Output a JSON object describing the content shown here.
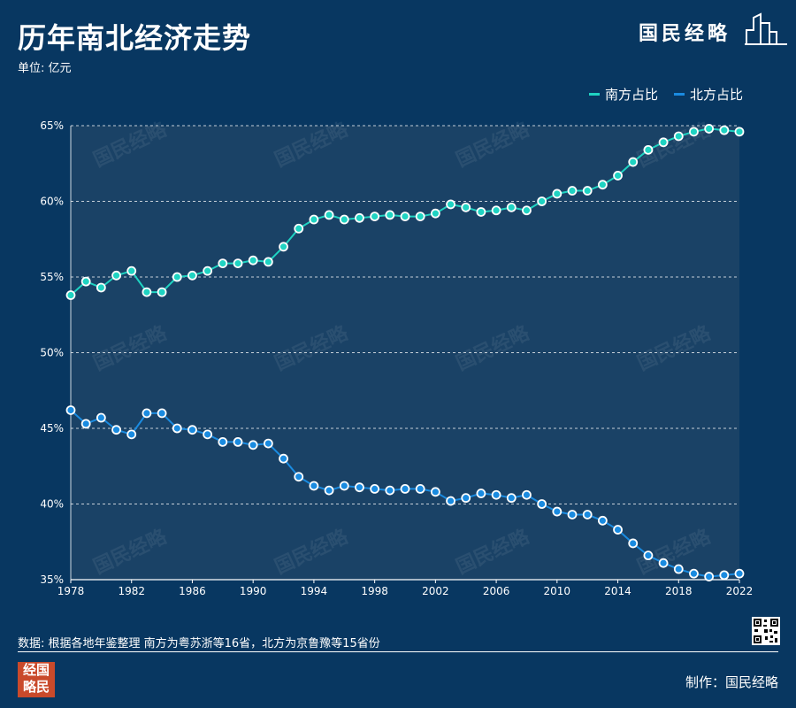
{
  "header": {
    "title": "历年南北经济走势",
    "unit": "单位: 亿元",
    "brand": "国民经略"
  },
  "footer": {
    "source": "数据: 根据各地年鉴整理 南方为粤苏浙等16省，北方为京鲁豫等15省份",
    "maker": "制作：国民经略",
    "seal_line1": "经国",
    "seal_line2": "略民"
  },
  "watermark": "国民经略",
  "colors": {
    "background": "#083761",
    "plot_area": "#1A4266",
    "south": "#1FD3C2",
    "north": "#1A8BE0",
    "grid": "#FFFFFF"
  },
  "chart_data": {
    "type": "line",
    "x": [
      1978,
      1979,
      1980,
      1981,
      1982,
      1983,
      1984,
      1985,
      1986,
      1987,
      1988,
      1989,
      1990,
      1991,
      1992,
      1993,
      1994,
      1995,
      1996,
      1997,
      1998,
      1999,
      2000,
      2001,
      2002,
      2003,
      2004,
      2005,
      2006,
      2007,
      2008,
      2009,
      2010,
      2011,
      2012,
      2013,
      2014,
      2015,
      2016,
      2017,
      2018,
      2019,
      2020,
      2021,
      2022
    ],
    "x_ticks": [
      "1978",
      "1982",
      "1986",
      "1990",
      "1994",
      "1998",
      "2002",
      "2006",
      "2010",
      "2014",
      "2018",
      "2022"
    ],
    "y_ticks": [
      "65%",
      "60%",
      "55%",
      "50%",
      "45%",
      "40%",
      "35%"
    ],
    "ylim": [
      35,
      65
    ],
    "series": [
      {
        "name": "南方占比",
        "values": [
          53.8,
          54.7,
          54.3,
          55.1,
          55.4,
          54.0,
          54.0,
          55.0,
          55.1,
          55.4,
          55.9,
          55.9,
          56.1,
          56.0,
          57.0,
          58.2,
          58.8,
          59.1,
          58.8,
          58.9,
          59.0,
          59.1,
          59.0,
          59.0,
          59.2,
          59.8,
          59.6,
          59.3,
          59.4,
          59.6,
          59.4,
          60.0,
          60.5,
          60.7,
          60.7,
          61.1,
          61.7,
          62.6,
          63.4,
          63.9,
          64.3,
          64.6,
          64.8,
          64.7,
          64.6
        ]
      },
      {
        "name": "北方占比",
        "values": [
          46.2,
          45.3,
          45.7,
          44.9,
          44.6,
          46.0,
          46.0,
          45.0,
          44.9,
          44.6,
          44.1,
          44.1,
          43.9,
          44.0,
          43.0,
          41.8,
          41.2,
          40.9,
          41.2,
          41.1,
          41.0,
          40.9,
          41.0,
          41.0,
          40.8,
          40.2,
          40.4,
          40.7,
          40.6,
          40.4,
          40.6,
          40.0,
          39.5,
          39.3,
          39.3,
          38.9,
          38.3,
          37.4,
          36.6,
          36.1,
          35.7,
          35.4,
          35.2,
          35.3,
          35.4
        ]
      }
    ]
  }
}
